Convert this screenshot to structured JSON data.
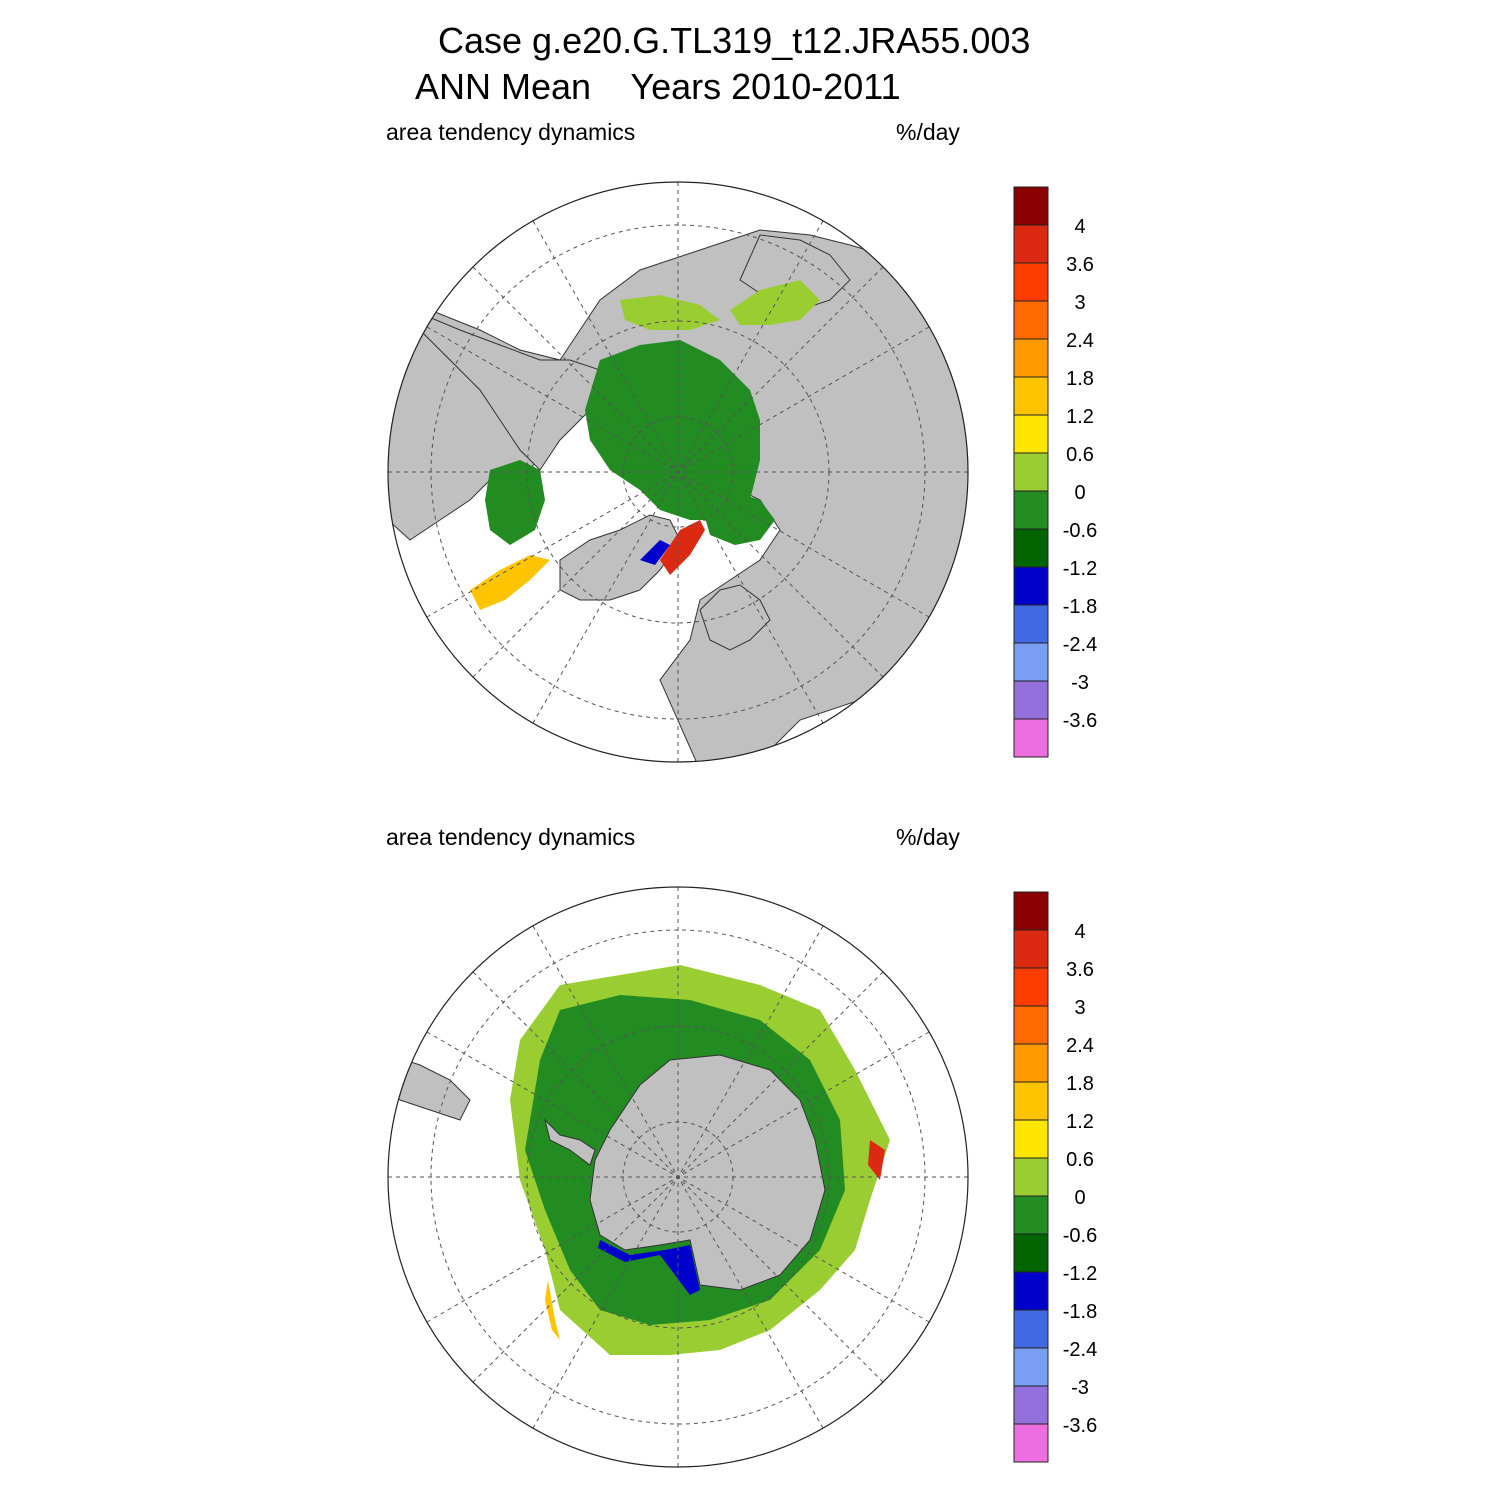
{
  "header": {
    "title_line1": "Case g.e20.G.TL319_t12.JRA55.003",
    "title_line2": "ANN Mean    Years 2010-2011"
  },
  "panels": [
    {
      "id": "north",
      "left_label": "area tendency dynamics",
      "right_label": "%/day"
    },
    {
      "id": "south",
      "left_label": "area tendency dynamics",
      "right_label": "%/day"
    }
  ],
  "colorbar": {
    "labels": [
      "4",
      "3.6",
      "3",
      "2.4",
      "1.8",
      "1.2",
      "0.6",
      "0",
      "-0.6",
      "-1.2",
      "-1.8",
      "-2.4",
      "-3",
      "-3.6"
    ],
    "colors": [
      "#8b0000",
      "#dc2a12",
      "#ff3c00",
      "#ff6a00",
      "#ff9900",
      "#ffc400",
      "#ffe600",
      "#9acd32",
      "#228b22",
      "#006400",
      "#0000cd",
      "#4169e1",
      "#7b9ef5",
      "#9370db",
      "#ee6ee0"
    ]
  },
  "map_colors": {
    "land": "#c0c0c0",
    "ocean": "#ffffff",
    "ice_main": "#228b22",
    "ice_edge": "#9acd32",
    "ice_thin": "#ffc400",
    "ice_neg": "#0000cd",
    "ice_hot": "#dc2a12"
  }
}
